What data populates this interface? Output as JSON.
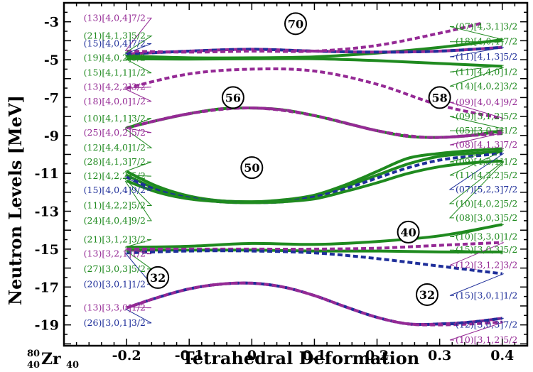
{
  "chart_data": {
    "type": "line",
    "xlabel": "Tetrahedral Deformation",
    "ylabel": "Neutron Levels [MeV]",
    "nucleus": {
      "mass": "80",
      "charge": "40",
      "symbol": "Zr",
      "sub": "40"
    },
    "xlim": [
      -0.3,
      0.44
    ],
    "ylim": [
      -20.1,
      -2.0
    ],
    "x_ticks": [
      -0.2,
      -0.1,
      0.0,
      0.1,
      0.2,
      0.3,
      0.4
    ],
    "x_tick_labels": [
      "-0.2",
      "-0.1",
      "0",
      "0.1",
      "0.2",
      "0.3",
      "0.4"
    ],
    "y_ticks": [
      -3,
      -5,
      -7,
      -9,
      -11,
      -13,
      -15,
      -17,
      -19
    ],
    "y_tick_labels": [
      "-3",
      "-5",
      "-7",
      "-9",
      "-11",
      "-13",
      "-15",
      "-17",
      "-19"
    ],
    "colors": {
      "green": "#1f8a1f",
      "purple": "#952a95",
      "navy": "#1f2f9a"
    },
    "magic_numbers": [
      {
        "label": "70",
        "x": 0.07,
        "y": -3.1
      },
      {
        "label": "56",
        "x": -0.03,
        "y": -7.0
      },
      {
        "label": "58",
        "x": 0.3,
        "y": -7.0
      },
      {
        "label": "50",
        "x": 0.0,
        "y": -10.7
      },
      {
        "label": "40",
        "x": 0.25,
        "y": -14.1
      },
      {
        "label": "32",
        "x": -0.15,
        "y": -16.5
      },
      {
        "label": "32",
        "x": 0.28,
        "y": -17.4
      }
    ],
    "series": [
      {
        "style": "green-solid",
        "x": [
          -0.2,
          -0.1,
          0.0,
          0.1,
          0.2,
          0.3,
          0.4
        ],
        "y": [
          -4.8,
          -4.9,
          -4.9,
          -4.85,
          -4.65,
          -4.35,
          -3.95
        ]
      },
      {
        "style": "green-solid",
        "x": [
          -0.2,
          -0.1,
          0.0,
          0.1,
          0.2,
          0.3,
          0.4
        ],
        "y": [
          -4.95,
          -4.97,
          -4.95,
          -4.95,
          -5.05,
          -5.2,
          -5.35
        ]
      },
      {
        "style": "purple-navy-dashed",
        "x": [
          -0.2,
          -0.1,
          0.0,
          0.1,
          0.2,
          0.3,
          0.4
        ],
        "y": [
          -4.7,
          -4.55,
          -4.45,
          -4.55,
          -4.6,
          -4.55,
          -4.35
        ]
      },
      {
        "style": "purple-dashed",
        "x": [
          -0.2,
          -0.1,
          0.0,
          0.1,
          0.2,
          0.3,
          0.37
        ],
        "y": [
          -4.55,
          -4.6,
          -4.55,
          -4.55,
          -4.25,
          -3.6,
          -3.05
        ]
      },
      {
        "style": "purple-dashed",
        "x": [
          -0.2,
          -0.1,
          0.0,
          0.1,
          0.2,
          0.3,
          0.4
        ],
        "y": [
          -6.5,
          -5.75,
          -5.5,
          -5.6,
          -6.3,
          -7.4,
          -8.1
        ]
      },
      {
        "style": "green-purple-dashed",
        "x": [
          -0.2,
          -0.15,
          -0.1,
          -0.05,
          0.0,
          0.05,
          0.1,
          0.15,
          0.2,
          0.25,
          0.3,
          0.35,
          0.4
        ],
        "y": [
          -8.6,
          -8.2,
          -7.85,
          -7.6,
          -7.55,
          -7.65,
          -7.95,
          -8.35,
          -8.75,
          -9.05,
          -9.1,
          -9.0,
          -8.75
        ]
      },
      {
        "style": "purple-dashed",
        "x": [
          -0.2,
          -0.1,
          0.0,
          0.1,
          0.2,
          0.28,
          0.35,
          0.4
        ],
        "y": [
          -8.6,
          -7.85,
          -7.55,
          -7.95,
          -8.75,
          -9.1,
          -9.0,
          -8.9
        ]
      },
      {
        "style": "green-solid",
        "x": [
          -0.2,
          -0.15,
          -0.1,
          -0.05,
          0.0,
          0.05,
          0.1,
          0.15,
          0.2,
          0.25,
          0.3,
          0.35,
          0.4
        ],
        "y": [
          -10.9,
          -11.7,
          -12.2,
          -12.45,
          -12.5,
          -12.4,
          -12.15,
          -11.6,
          -10.9,
          -10.2,
          -9.95,
          -9.8,
          -9.7
        ]
      },
      {
        "style": "green-solid",
        "x": [
          -0.2,
          -0.15,
          -0.1,
          -0.05,
          0.0,
          0.05,
          0.1,
          0.15,
          0.2,
          0.25,
          0.3,
          0.35,
          0.4
        ],
        "y": [
          -11.1,
          -11.85,
          -12.25,
          -12.45,
          -12.5,
          -12.45,
          -12.2,
          -11.7,
          -11.1,
          -10.5,
          -10.1,
          -9.95,
          -9.85
        ]
      },
      {
        "style": "navy-dashed",
        "x": [
          -0.2,
          -0.15,
          -0.1,
          -0.05,
          0.0,
          0.05,
          0.1,
          0.15,
          0.2,
          0.25,
          0.3,
          0.35,
          0.4
        ],
        "y": [
          -11.2,
          -11.9,
          -12.3,
          -12.5,
          -12.55,
          -12.5,
          -12.25,
          -11.8,
          -11.25,
          -10.7,
          -10.3,
          -10.1,
          -9.95
        ]
      },
      {
        "style": "green-solid",
        "x": [
          -0.2,
          -0.15,
          -0.1,
          -0.05,
          0.0,
          0.05,
          0.1,
          0.15,
          0.2,
          0.25,
          0.3,
          0.35,
          0.4
        ],
        "y": [
          -11.4,
          -12.0,
          -12.35,
          -12.5,
          -12.55,
          -12.5,
          -12.35,
          -11.95,
          -11.5,
          -11.0,
          -10.65,
          -10.45,
          -10.35
        ]
      },
      {
        "style": "green-solid",
        "x": [
          -0.2,
          -0.1,
          0.0,
          0.1,
          0.2,
          0.3,
          0.4
        ],
        "y": [
          -14.9,
          -14.85,
          -14.7,
          -14.75,
          -14.6,
          -14.3,
          -13.7
        ]
      },
      {
        "style": "green-solid",
        "x": [
          -0.2,
          -0.1,
          0.0,
          0.1,
          0.2,
          0.3,
          0.4
        ],
        "y": [
          -15.05,
          -15.05,
          -15.05,
          -15.1,
          -15.1,
          -15.15,
          -15.15
        ]
      },
      {
        "style": "purple-dashed",
        "x": [
          -0.2,
          -0.1,
          0.0,
          0.1,
          0.2,
          0.3,
          0.4
        ],
        "y": [
          -15.0,
          -15.0,
          -15.0,
          -15.0,
          -14.95,
          -14.8,
          -14.65
        ]
      },
      {
        "style": "navy-dashed",
        "x": [
          -0.2,
          -0.1,
          0.0,
          0.1,
          0.2,
          0.3,
          0.4
        ],
        "y": [
          -15.2,
          -15.1,
          -15.1,
          -15.2,
          -15.5,
          -15.9,
          -16.3
        ]
      },
      {
        "style": "purple-navy-dashed",
        "x": [
          -0.2,
          -0.15,
          -0.1,
          -0.05,
          0.0,
          0.05,
          0.1,
          0.15,
          0.2,
          0.25,
          0.3,
          0.35,
          0.4
        ],
        "y": [
          -18.1,
          -17.55,
          -17.1,
          -16.85,
          -16.8,
          -17.0,
          -17.45,
          -18.05,
          -18.6,
          -18.95,
          -18.95,
          -18.85,
          -18.65
        ]
      },
      {
        "style": "purple-dashed",
        "x": [
          -0.2,
          -0.15,
          -0.1,
          -0.05,
          0.0,
          0.05,
          0.1,
          0.15,
          0.2,
          0.25,
          0.3,
          0.35,
          0.4
        ],
        "y": [
          -18.1,
          -17.55,
          -17.1,
          -16.85,
          -16.8,
          -17.0,
          -17.45,
          -18.05,
          -18.6,
          -18.95,
          -19.0,
          -18.95,
          -18.85
        ]
      }
    ],
    "left_labels": [
      {
        "text": "(13)[4,0,4]7/2",
        "color": "purple",
        "y": -2.8,
        "target": -4.55
      },
      {
        "text": "(21)[4,1,3]5/2",
        "color": "green",
        "y": -3.75,
        "target": -4.65
      },
      {
        "text": "(15)[4,0,4]7/2",
        "color": "navy",
        "y": -4.15,
        "target": -4.7
      },
      {
        "text": "(19)[4,0,2]3/2",
        "color": "green",
        "y": -4.9,
        "target": -4.8
      },
      {
        "text": "(15)[4,1,1]1/2",
        "color": "green",
        "y": -5.7,
        "target": -4.95
      },
      {
        "text": "(13)[4,2,2]3/2",
        "color": "purple",
        "y": -6.45,
        "target": -6.5
      },
      {
        "text": "(18)[4,0,0]1/2",
        "color": "purple",
        "y": -7.2,
        "target": -6.55
      },
      {
        "text": "(10)[4,1,1]3/2",
        "color": "green",
        "y": -8.1,
        "target": -8.6
      },
      {
        "text": "(25)[4,0,2]5/2",
        "color": "purple",
        "y": -8.85,
        "target": -8.6
      },
      {
        "text": "(12)[4,4,0]1/2",
        "color": "green",
        "y": -9.65,
        "target": -8.65
      },
      {
        "text": "(28)[4,1,3]7/2",
        "color": "green",
        "y": -10.4,
        "target": -10.9
      },
      {
        "text": "(12)[4,2,2]5/2",
        "color": "green",
        "y": -11.15,
        "target": -11.1
      },
      {
        "text": "(15)[4,0,4]9/2",
        "color": "navy",
        "y": -11.9,
        "target": -11.2
      },
      {
        "text": "(11)[4,2,2]5/2",
        "color": "green",
        "y": -12.7,
        "target": -11.3
      },
      {
        "text": "(24)[4,0,4]9/2",
        "color": "green",
        "y": -13.5,
        "target": -11.4
      },
      {
        "text": "(21)[3,1,2]3/2",
        "color": "green",
        "y": -14.5,
        "target": -14.9
      },
      {
        "text": "(13)[3,2,1]1/2",
        "color": "purple",
        "y": -15.25,
        "target": -15.0
      },
      {
        "text": "(27)[3,0,3]5/2",
        "color": "green",
        "y": -16.05,
        "target": -15.05
      },
      {
        "text": "(20)[3,0,1]1/2",
        "color": "navy",
        "y": -16.85,
        "target": -15.2
      },
      {
        "text": "(13)[3,3,0]1/2",
        "color": "purple",
        "y": -18.1,
        "target": -18.05
      },
      {
        "text": "(26)[3,0,1]3/2",
        "color": "navy",
        "y": -18.9,
        "target": -18.15
      }
    ],
    "right_labels": [
      {
        "text": "(07)[4,3,1]3/2",
        "color": "green",
        "y": -3.25,
        "target": -3.95
      },
      {
        "text": "(18)[4,0,4]7/2",
        "color": "green",
        "y": -4.05,
        "target": -4.05
      },
      {
        "text": "(11)[4,1,3]5/2",
        "color": "navy",
        "y": -4.85,
        "target": -4.35
      },
      {
        "text": "(11)[4,4,0]1/2",
        "color": "green",
        "y": -5.65,
        "target": -5.3
      },
      {
        "text": "(14)[4,0,2]3/2",
        "color": "green",
        "y": -6.4,
        "target": -5.4
      },
      {
        "text": "(09)[4,0,4]9/2",
        "color": "purple",
        "y": -7.25,
        "target": -8.1
      },
      {
        "text": "(09)[3,1,2]5/2",
        "color": "green",
        "y": -8.0,
        "target": -8.65
      },
      {
        "text": "(05)[3,0,1]1/2",
        "color": "green",
        "y": -8.75,
        "target": -8.75
      },
      {
        "text": "(08)[4,1,3]7/2",
        "color": "purple",
        "y": -9.5,
        "target": -8.85
      },
      {
        "text": "(09)[4,3,1]1/2",
        "color": "green",
        "y": -10.4,
        "target": -9.7
      },
      {
        "text": "(11)[4,2,2]5/2",
        "color": "green",
        "y": -11.1,
        "target": -9.8
      },
      {
        "text": "(07)[5,2,3]7/2",
        "color": "navy",
        "y": -11.85,
        "target": -9.95
      },
      {
        "text": "(10)[4,0,2]5/2",
        "color": "green",
        "y": -12.6,
        "target": -10.35
      },
      {
        "text": "(08)[3,0,3]5/2",
        "color": "green",
        "y": -13.35,
        "target": -10.4
      },
      {
        "text": "(10)[3,3,0]1/2",
        "color": "green",
        "y": -14.35,
        "target": -13.7
      },
      {
        "text": "(15)[3,0,3]5/2",
        "color": "green",
        "y": -15.05,
        "target": -15.15
      },
      {
        "text": "(12)[3,1,2]3/2",
        "color": "purple",
        "y": -15.85,
        "target": -14.65
      },
      {
        "text": "(15)[3,0,1]1/2",
        "color": "navy",
        "y": -17.45,
        "target": -16.3
      },
      {
        "text": "(12)[3,0,3]7/2",
        "color": "navy",
        "y": -19.0,
        "target": -18.65
      },
      {
        "text": "(10)[3,1,2]5/2",
        "color": "purple",
        "y": -19.8,
        "target": -18.85
      }
    ]
  }
}
